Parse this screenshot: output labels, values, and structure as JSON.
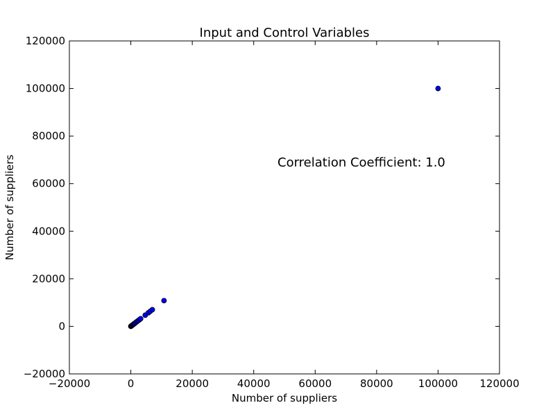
{
  "chart_data": {
    "type": "scatter",
    "title": "Input and Control Variables",
    "xlabel": "Number of suppliers",
    "ylabel": "Number of suppliers",
    "xlim": [
      -20000,
      120000
    ],
    "ylim": [
      -20000,
      120000
    ],
    "xticks": [
      -20000,
      0,
      20000,
      40000,
      60000,
      80000,
      100000,
      120000
    ],
    "yticks": [
      -20000,
      0,
      20000,
      40000,
      60000,
      80000,
      100000,
      120000
    ],
    "xtick_labels": [
      "−20000",
      "0",
      "20000",
      "40000",
      "60000",
      "80000",
      "100000",
      "120000"
    ],
    "ytick_labels": [
      "−20000",
      "0",
      "20000",
      "40000",
      "60000",
      "80000",
      "100000",
      "120000"
    ],
    "grid": false,
    "annotation": {
      "text": "Correlation Coefficient: 1.0"
    },
    "marker_color": "#0000ff",
    "marker_edge_color": "#000000",
    "points": [
      {
        "x": 0,
        "y": 0
      },
      {
        "x": 100,
        "y": 100
      },
      {
        "x": 200,
        "y": 200
      },
      {
        "x": 350,
        "y": 350
      },
      {
        "x": 500,
        "y": 500
      },
      {
        "x": 700,
        "y": 700
      },
      {
        "x": 900,
        "y": 900
      },
      {
        "x": 1100,
        "y": 1100
      },
      {
        "x": 1300,
        "y": 1300
      },
      {
        "x": 1600,
        "y": 1600
      },
      {
        "x": 1900,
        "y": 1900
      },
      {
        "x": 2200,
        "y": 2200
      },
      {
        "x": 2500,
        "y": 2500
      },
      {
        "x": 2900,
        "y": 2900
      },
      {
        "x": 3200,
        "y": 3200
      },
      {
        "x": 4700,
        "y": 4700
      },
      {
        "x": 5700,
        "y": 5700
      },
      {
        "x": 6300,
        "y": 6300
      },
      {
        "x": 7000,
        "y": 7000
      },
      {
        "x": 10800,
        "y": 10800
      },
      {
        "x": 100000,
        "y": 100000
      }
    ]
  }
}
